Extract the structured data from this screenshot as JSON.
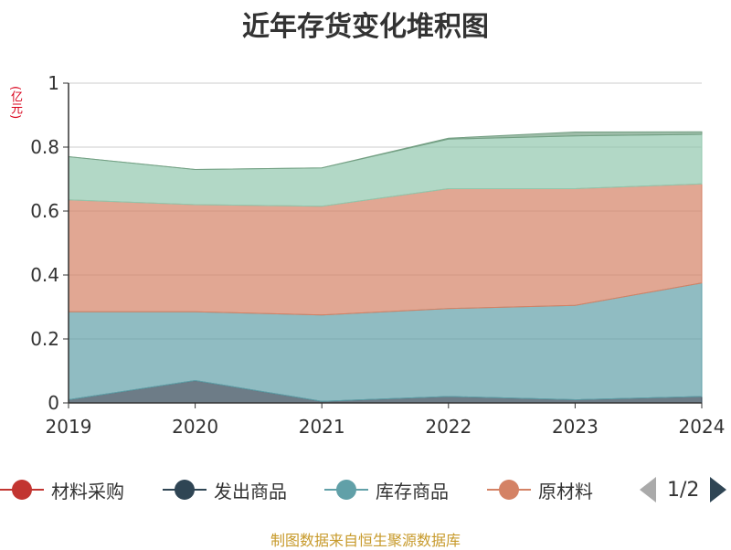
{
  "title": "近年存货变化堆积图",
  "unit": "(亿元)",
  "source": "制图数据来自恒生聚源数据库",
  "pager": {
    "text": "1/2"
  },
  "legend": [
    {
      "name": "材料采购",
      "color": "#c23531"
    },
    {
      "name": "发出商品",
      "color": "#2f4554"
    },
    {
      "name": "库存商品",
      "color": "#61a0a8"
    },
    {
      "name": "原材料",
      "color": "#d48265"
    }
  ],
  "chart_data": {
    "type": "area",
    "stacked": true,
    "title": "近年存货变化堆积图",
    "ylabel": "(亿元)",
    "categories": [
      "2019",
      "2020",
      "2021",
      "2022",
      "2023",
      "2024"
    ],
    "ylim": [
      0,
      1
    ],
    "yticks": [
      "0",
      "0.2",
      "0.4",
      "0.6",
      "0.8",
      "1"
    ],
    "grid": true,
    "legend_position": "bottom",
    "series": [
      {
        "name": "材料采购",
        "color": "#c23531",
        "values": [
          0,
          0,
          0,
          0,
          0,
          0
        ]
      },
      {
        "name": "发出商品",
        "color": "#2f4554",
        "values": [
          0.01,
          0.07,
          0.005,
          0.02,
          0.01,
          0.02
        ]
      },
      {
        "name": "库存商品",
        "color": "#61a0a8",
        "values": [
          0.275,
          0.215,
          0.27,
          0.275,
          0.295,
          0.355
        ]
      },
      {
        "name": "原材料",
        "color": "#d48265",
        "values": [
          0.35,
          0.335,
          0.34,
          0.375,
          0.365,
          0.31
        ]
      },
      {
        "color": "#91c7ae",
        "values": [
          0.135,
          0.11,
          0.12,
          0.155,
          0.165,
          0.155
        ]
      },
      {
        "color": "#749f83",
        "values": [
          0,
          0,
          0,
          0.003,
          0.012,
          0.008
        ]
      }
    ]
  }
}
